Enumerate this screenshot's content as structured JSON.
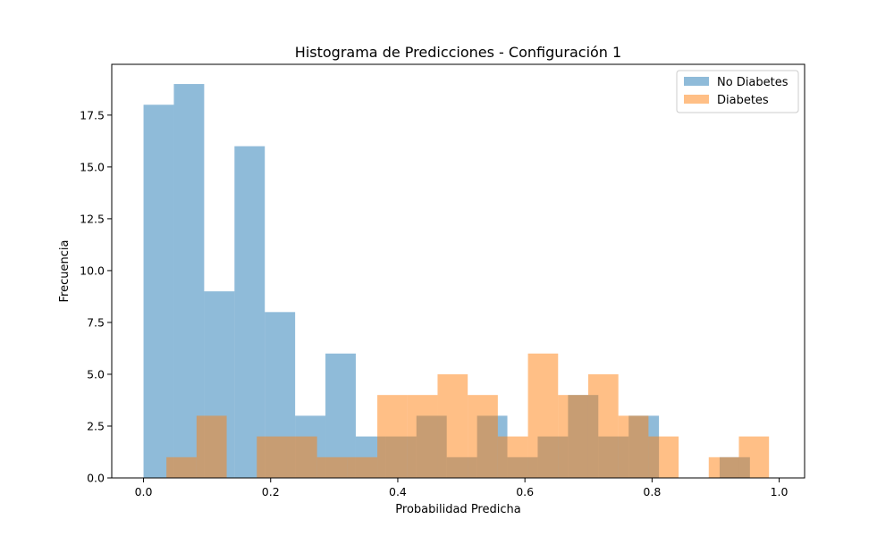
{
  "chart_data": {
    "type": "histogram",
    "title": "Histograma de Predicciones - Configuración 1",
    "xlabel": "Probabilidad Predicha",
    "ylabel": "Frecuencia",
    "xlim": [
      -0.05,
      1.04
    ],
    "ylim": [
      0,
      19.95
    ],
    "xticks": [
      0.0,
      0.2,
      0.4,
      0.6,
      0.8,
      1.0
    ],
    "xtick_labels": [
      "0.0",
      "0.2",
      "0.4",
      "0.6",
      "0.8",
      "1.0"
    ],
    "yticks": [
      0.0,
      2.5,
      5.0,
      7.5,
      10.0,
      12.5,
      15.0,
      17.5
    ],
    "ytick_labels": [
      "0.0",
      "2.5",
      "5.0",
      "7.5",
      "10.0",
      "12.5",
      "15.0",
      "17.5"
    ],
    "grid": false,
    "legend_position": "top-right",
    "series": [
      {
        "name": "No Diabetes",
        "color": "#1f77b4",
        "opacity": 0.5,
        "bins": [
          {
            "x0": 0.0,
            "x1": 0.0477,
            "count": 18
          },
          {
            "x0": 0.0477,
            "x1": 0.0954,
            "count": 19
          },
          {
            "x0": 0.0954,
            "x1": 0.1431,
            "count": 9
          },
          {
            "x0": 0.1431,
            "x1": 0.1908,
            "count": 16
          },
          {
            "x0": 0.1908,
            "x1": 0.2385,
            "count": 8
          },
          {
            "x0": 0.2385,
            "x1": 0.2862,
            "count": 3
          },
          {
            "x0": 0.2862,
            "x1": 0.3339,
            "count": 6
          },
          {
            "x0": 0.3339,
            "x1": 0.3816,
            "count": 2
          },
          {
            "x0": 0.3816,
            "x1": 0.4293,
            "count": 2
          },
          {
            "x0": 0.4293,
            "x1": 0.477,
            "count": 3
          },
          {
            "x0": 0.477,
            "x1": 0.5247,
            "count": 1
          },
          {
            "x0": 0.5247,
            "x1": 0.5724,
            "count": 3
          },
          {
            "x0": 0.5724,
            "x1": 0.6201,
            "count": 1
          },
          {
            "x0": 0.6201,
            "x1": 0.6678,
            "count": 2
          },
          {
            "x0": 0.6678,
            "x1": 0.7155,
            "count": 4
          },
          {
            "x0": 0.7155,
            "x1": 0.7632,
            "count": 2
          },
          {
            "x0": 0.7632,
            "x1": 0.8109,
            "count": 3
          },
          {
            "x0": 0.8109,
            "x1": 0.8586,
            "count": 0
          },
          {
            "x0": 0.8586,
            "x1": 0.9063,
            "count": 0
          },
          {
            "x0": 0.9063,
            "x1": 0.954,
            "count": 1
          }
        ]
      },
      {
        "name": "Diabetes",
        "color": "#ff7f0e",
        "opacity": 0.5,
        "bins": [
          {
            "x0": 0.036,
            "x1": 0.0834,
            "count": 1
          },
          {
            "x0": 0.0834,
            "x1": 0.1308,
            "count": 3
          },
          {
            "x0": 0.1308,
            "x1": 0.1782,
            "count": 0
          },
          {
            "x0": 0.1782,
            "x1": 0.2256,
            "count": 2
          },
          {
            "x0": 0.2256,
            "x1": 0.273,
            "count": 2
          },
          {
            "x0": 0.273,
            "x1": 0.3204,
            "count": 1
          },
          {
            "x0": 0.3204,
            "x1": 0.3678,
            "count": 1
          },
          {
            "x0": 0.3678,
            "x1": 0.4152,
            "count": 4
          },
          {
            "x0": 0.4152,
            "x1": 0.4626,
            "count": 4
          },
          {
            "x0": 0.4626,
            "x1": 0.51,
            "count": 5
          },
          {
            "x0": 0.51,
            "x1": 0.5574,
            "count": 4
          },
          {
            "x0": 0.5574,
            "x1": 0.6048,
            "count": 2
          },
          {
            "x0": 0.6048,
            "x1": 0.6522,
            "count": 6
          },
          {
            "x0": 0.6522,
            "x1": 0.6996,
            "count": 4
          },
          {
            "x0": 0.6996,
            "x1": 0.747,
            "count": 5
          },
          {
            "x0": 0.747,
            "x1": 0.7944,
            "count": 3
          },
          {
            "x0": 0.7944,
            "x1": 0.8418,
            "count": 2
          },
          {
            "x0": 0.8418,
            "x1": 0.8892,
            "count": 0
          },
          {
            "x0": 0.8892,
            "x1": 0.9366,
            "count": 1
          },
          {
            "x0": 0.9366,
            "x1": 0.984,
            "count": 2
          }
        ]
      }
    ]
  }
}
